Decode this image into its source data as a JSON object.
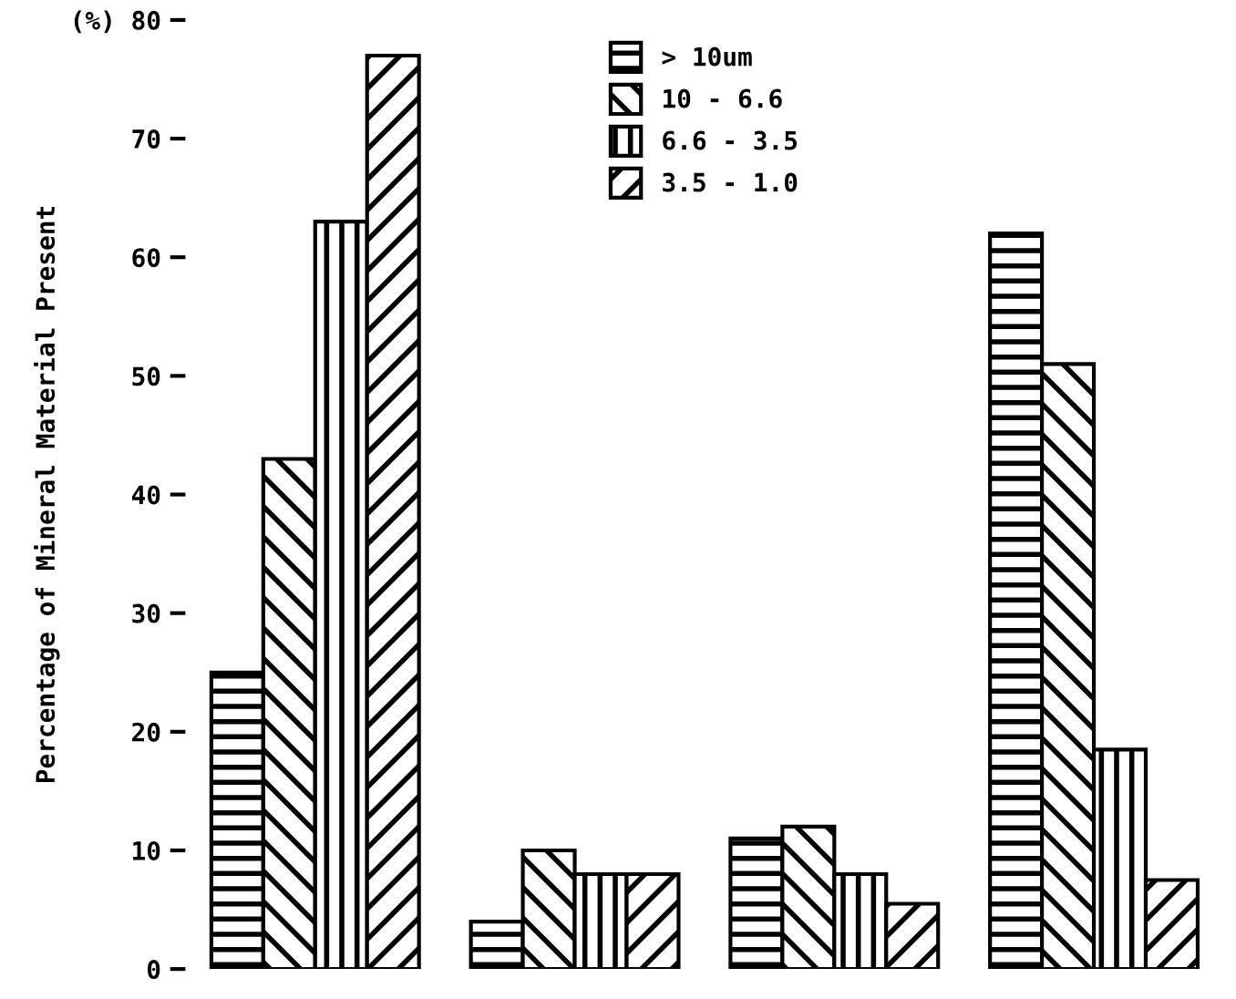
{
  "chart_data": {
    "type": "bar",
    "ylabel": "Percentage of Mineral Material Present",
    "categories": [
      null,
      null,
      null,
      null
    ],
    "series": [
      {
        "name": "> 10um",
        "color": "#000000",
        "values": [
          25,
          4,
          11,
          62
        ]
      },
      {
        "name": "10 - 6.6",
        "color": "#000000",
        "values": [
          43,
          10,
          12,
          51
        ]
      },
      {
        "name": "6.6 - 3.5",
        "color": "#000000",
        "values": [
          63,
          8,
          8,
          18.5
        ]
      },
      {
        "name": "3.5 - 1.0",
        "color": "#000000",
        "values": [
          77,
          8,
          5.5,
          7.5
        ]
      }
    ],
    "ylim": [
      0,
      80
    ],
    "yticks": [
      0,
      10,
      20,
      30,
      40,
      50,
      60,
      70,
      {
        "value": 80,
        "label": "(%) 80"
      }
    ],
    "grid": false,
    "legend": "top"
  }
}
